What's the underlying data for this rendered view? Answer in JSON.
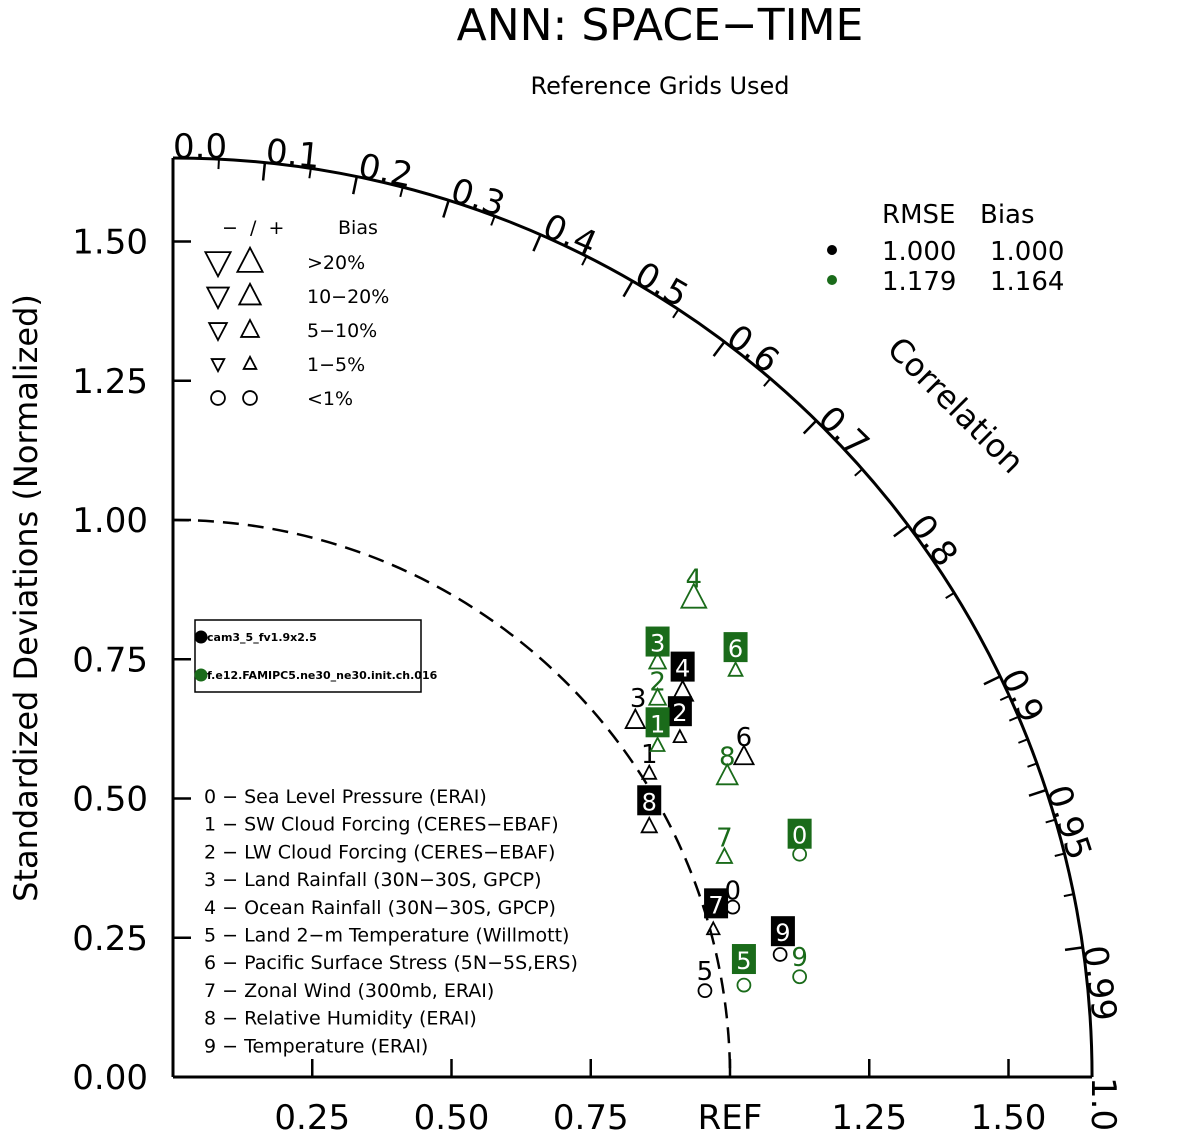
{
  "chart_data": {
    "type": "scatter",
    "subtype": "taylor-diagram",
    "title": "ANN: SPACE−TIME",
    "subtitle": "Reference Grids Used",
    "ylabel": "Standardized Deviations (Normalized)",
    "arc_label": "Correlation",
    "ref_label": "REF",
    "y_ticks": [
      "0.00",
      "0.25",
      "0.50",
      "0.75",
      "1.00",
      "1.25",
      "1.50"
    ],
    "x_ticks": [
      "0.25",
      "0.50",
      "0.75",
      "REF",
      "1.25",
      "1.50"
    ],
    "x_tick_values": [
      0.25,
      0.5,
      0.75,
      1.0,
      1.25,
      1.5
    ],
    "y_tick_values": [
      0,
      0.25,
      0.5,
      0.75,
      1.0,
      1.25,
      1.5
    ],
    "max_std": 1.65,
    "correlation_ticks": [
      {
        "label": "0.0",
        "value": 0.0
      },
      {
        "label": "0.1",
        "value": 0.1
      },
      {
        "label": "0.2",
        "value": 0.2
      },
      {
        "label": "0.3",
        "value": 0.3
      },
      {
        "label": "0.4",
        "value": 0.4
      },
      {
        "label": "0.5",
        "value": 0.5
      },
      {
        "label": "0.6",
        "value": 0.6
      },
      {
        "label": "0.7",
        "value": 0.7
      },
      {
        "label": "0.8",
        "value": 0.8
      },
      {
        "label": "0.9",
        "value": 0.9
      },
      {
        "label": "0.95",
        "value": 0.95
      },
      {
        "label": "0.99",
        "value": 0.99
      },
      {
        "label": "1.0",
        "value": 1.0
      }
    ],
    "bias_legend": {
      "header_left": "−  /  +",
      "header_right": "Bias",
      "rows": [
        {
          "label": ">20%",
          "symbol": "triangle",
          "size": 1.0
        },
        {
          "label": "10−20%",
          "symbol": "triangle",
          "size": 0.85
        },
        {
          "label": "5−10%",
          "symbol": "triangle",
          "size": 0.7
        },
        {
          "label": "1−5%",
          "symbol": "triangle",
          "size": 0.5
        },
        {
          "label": "<1%",
          "symbol": "circle",
          "size": 0.7
        }
      ]
    },
    "stats": {
      "header_rmse": "RMSE",
      "header_bias": "Bias",
      "rows": [
        {
          "rmse": "1.000",
          "bias": "1.000",
          "color": "#000000"
        },
        {
          "rmse": "1.179",
          "bias": "1.164",
          "color": "#1a6b1a"
        }
      ]
    },
    "cases": [
      {
        "name": "cam3_5_fv1.9x2.5",
        "color": "#000000"
      },
      {
        "name": "f.e12.FAMIPC5.ne30_ne30.init.ch.016",
        "color": "#1a6b1a"
      }
    ],
    "variables": [
      "0 − Sea Level Pressure (ERAI)",
      "1 − SW Cloud Forcing (CERES−EBAF)",
      "2 − LW Cloud Forcing (CERES−EBAF)",
      "3 − Land Rainfall (30N−30S, GPCP)",
      "4 − Ocean Rainfall (30N−30S, GPCP)",
      "5 − Land 2−m Temperature (Willmott)",
      "6 − Pacific Surface Stress (5N−5S,ERS)",
      "7 − Zonal Wind (300mb, ERAI)",
      "8 − Relative Humidity (ERAI)",
      "9 − Temperature (ERAI)"
    ],
    "series": [
      {
        "name": "cam3_5_fv1.9x2.5",
        "color": "#000000",
        "points": [
          {
            "id": "0",
            "x": 1.005,
            "y": 0.305,
            "label_x": 1.005,
            "label_y": 0.335,
            "symbol": "circle",
            "size": 0.6,
            "boxed": false
          },
          {
            "id": "1",
            "x": 0.855,
            "y": 0.545,
            "label_x": 0.855,
            "label_y": 0.58,
            "symbol": "triangle",
            "size": 0.5,
            "boxed": false
          },
          {
            "id": "2",
            "x": 0.91,
            "y": 0.61,
            "label_x": 0.91,
            "label_y": 0.655,
            "symbol": "triangle",
            "size": 0.45,
            "boxed": true
          },
          {
            "id": "3",
            "x": 0.83,
            "y": 0.64,
            "label_x": 0.835,
            "label_y": 0.68,
            "symbol": "triangle",
            "size": 0.7,
            "boxed": false
          },
          {
            "id": "4",
            "x": 0.915,
            "y": 0.69,
            "label_x": 0.915,
            "label_y": 0.735,
            "symbol": "triangle",
            "size": 0.75,
            "boxed": true
          },
          {
            "id": "5",
            "x": 0.955,
            "y": 0.155,
            "label_x": 0.955,
            "label_y": 0.19,
            "symbol": "circle",
            "size": 0.6,
            "boxed": false
          },
          {
            "id": "6",
            "x": 1.025,
            "y": 0.575,
            "label_x": 1.025,
            "label_y": 0.61,
            "symbol": "triangle",
            "size": 0.7,
            "boxed": false
          },
          {
            "id": "7",
            "x": 0.97,
            "y": 0.265,
            "label_x": 0.975,
            "label_y": 0.31,
            "symbol": "triangle",
            "size": 0.45,
            "boxed": true
          },
          {
            "id": "8",
            "x": 0.855,
            "y": 0.45,
            "label_x": 0.855,
            "label_y": 0.495,
            "symbol": "triangle",
            "size": 0.55,
            "boxed": true
          },
          {
            "id": "9",
            "x": 1.09,
            "y": 0.22,
            "label_x": 1.095,
            "label_y": 0.26,
            "symbol": "circle",
            "size": 0.6,
            "boxed": true
          }
        ]
      },
      {
        "name": "f.e12.FAMIPC5.ne30_ne30.init.ch.016",
        "color": "#1a6b1a",
        "points": [
          {
            "id": "0",
            "x": 1.125,
            "y": 0.4,
            "label_x": 1.125,
            "label_y": 0.435,
            "symbol": "circle",
            "size": 0.6,
            "boxed": true
          },
          {
            "id": "1",
            "x": 0.87,
            "y": 0.595,
            "label_x": 0.87,
            "label_y": 0.635,
            "symbol": "triangle",
            "size": 0.5,
            "boxed": true
          },
          {
            "id": "2",
            "x": 0.87,
            "y": 0.68,
            "label_x": 0.87,
            "label_y": 0.71,
            "symbol": "triangle",
            "size": 0.6,
            "boxed": false
          },
          {
            "id": "3",
            "x": 0.87,
            "y": 0.745,
            "label_x": 0.87,
            "label_y": 0.78,
            "symbol": "triangle",
            "size": 0.6,
            "boxed": true
          },
          {
            "id": "4",
            "x": 0.935,
            "y": 0.86,
            "label_x": 0.935,
            "label_y": 0.895,
            "symbol": "triangle",
            "size": 0.9,
            "boxed": false
          },
          {
            "id": "5",
            "x": 1.025,
            "y": 0.165,
            "label_x": 1.025,
            "label_y": 0.21,
            "symbol": "circle",
            "size": 0.6,
            "boxed": true
          },
          {
            "id": "6",
            "x": 1.01,
            "y": 0.73,
            "label_x": 1.01,
            "label_y": 0.77,
            "symbol": "triangle",
            "size": 0.5,
            "boxed": true
          },
          {
            "id": "7",
            "x": 0.99,
            "y": 0.395,
            "label_x": 0.99,
            "label_y": 0.43,
            "symbol": "triangle",
            "size": 0.55,
            "boxed": false
          },
          {
            "id": "8",
            "x": 0.995,
            "y": 0.54,
            "label_x": 0.995,
            "label_y": 0.575,
            "symbol": "triangle",
            "size": 0.75,
            "boxed": false
          },
          {
            "id": "9",
            "x": 1.125,
            "y": 0.18,
            "label_x": 1.125,
            "label_y": 0.215,
            "symbol": "circle",
            "size": 0.6,
            "boxed": false
          }
        ]
      }
    ]
  }
}
